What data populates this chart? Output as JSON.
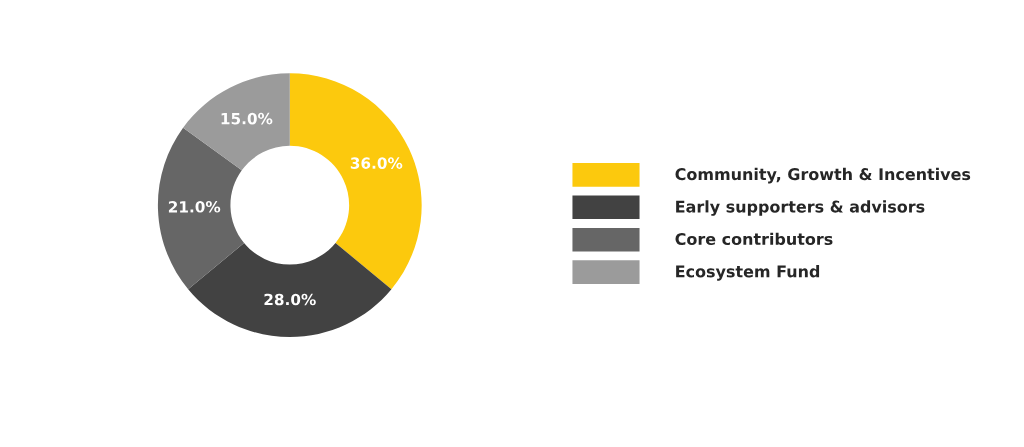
{
  "chart_data": {
    "type": "donut",
    "categories": [
      "Community, Growth & Incentives",
      "Early supporters & advisors",
      "Core contributors",
      "Ecosystem Fund"
    ],
    "values": [
      36,
      28,
      21,
      15
    ],
    "colors": [
      "#fcc90d",
      "#424242",
      "#666666",
      "#9b9b9b"
    ],
    "value_labels": [
      "36.0%",
      "28.0%",
      "21.0%",
      "15.0%"
    ],
    "legend": "right"
  }
}
